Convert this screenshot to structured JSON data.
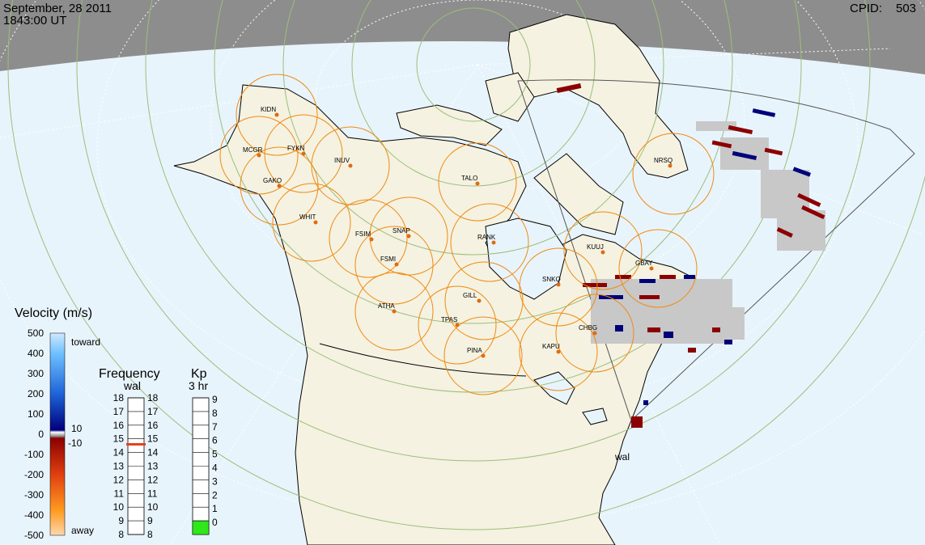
{
  "header": {
    "date": "September, 28 2011",
    "time": "1843:00 UT",
    "cpid_label": "CPID:",
    "cpid_value": "503"
  },
  "colors": {
    "land": "#f5f2e1",
    "ocean": "#e8f4fc",
    "night": "#8d8d8d",
    "radar_fov": "#f08a10",
    "station": "#e26a10",
    "grid": "#9bbf7a",
    "ground_scatter": "#c8c8c8"
  },
  "stations": [
    {
      "code": "KIDN"
    },
    {
      "code": "MCGR"
    },
    {
      "code": "FYKN"
    },
    {
      "code": "INUV"
    },
    {
      "code": "GAKO"
    },
    {
      "code": "WHIT"
    },
    {
      "code": "FSIM"
    },
    {
      "code": "SNAP"
    },
    {
      "code": "FSMI"
    },
    {
      "code": "TALO"
    },
    {
      "code": "RANK"
    },
    {
      "code": "KUUJ"
    },
    {
      "code": "GBAY"
    },
    {
      "code": "SNKQ"
    },
    {
      "code": "ATHA"
    },
    {
      "code": "GILL"
    },
    {
      "code": "TPAS"
    },
    {
      "code": "CHBG"
    },
    {
      "code": "KAPU"
    },
    {
      "code": "PINA"
    },
    {
      "code": "NRSQ"
    }
  ],
  "radar_label": "wal",
  "velocity_legend": {
    "title": "Velocity (m/s)",
    "ticks": [
      "500",
      "400",
      "300",
      "200",
      "100",
      "0",
      "-100",
      "-200",
      "-300",
      "-400",
      "-500"
    ],
    "toward": "toward",
    "away": "away",
    "threshold_pos": "10",
    "threshold_neg": "-10"
  },
  "frequency_legend": {
    "title": "Frequency",
    "subtitle": "wal",
    "ticks": [
      "18",
      "17",
      "16",
      "15",
      "14",
      "13",
      "12",
      "11",
      "10",
      "9",
      "8"
    ],
    "marker_value_mhz": 14.6,
    "marker_color": "#e8401c"
  },
  "kp_legend": {
    "title": "Kp",
    "subtitle": "3 hr",
    "ticks": [
      "9",
      "8",
      "7",
      "6",
      "5",
      "4",
      "3",
      "2",
      "1",
      "0"
    ],
    "value": 1,
    "fill_color": "#2ee81a"
  }
}
